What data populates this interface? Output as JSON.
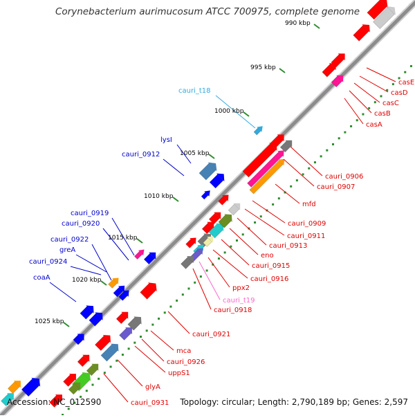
{
  "title": "Corynebacterium aurimucosum ATCC 700975, complete genome",
  "footer": {
    "accession": "Accession: NC_012590",
    "topology": "Topology: circular; Length: 2,790,189 bp; Genes: 2,597"
  },
  "colors": {
    "backbone": "#8c8c8c",
    "tick_dot": "#2e8b2e",
    "label_red": "#e00000",
    "label_blue": "#0000cc",
    "label_cyan": "#33aadd",
    "label_pink": "#ff66cc",
    "cds_red": "#ff0000",
    "cds_blue": "#0000ff",
    "cds_steelblue": "#4682b4",
    "cds_gray": "#777777",
    "cds_lightgray": "#cccccc",
    "cds_magenta": "#ff1493",
    "cds_orange": "#ff9900",
    "cds_cyan": "#22cccc",
    "cds_green": "#44cc22",
    "cds_olive": "#6b8e23",
    "cds_purple": "#6a5acd",
    "cds_lightyellow": "#eeeeaa"
  },
  "ruler_labels": [
    "990 kbp",
    "995 kbp",
    "1000 kbp",
    "1005 kbp",
    "1010 kbp",
    "1015 kbp",
    "1020 kbp",
    "1025 kbp"
  ],
  "right_labels": [
    "casE",
    "casD",
    "casC",
    "casB",
    "casA",
    "cauri_0906",
    "cauri_0907",
    "mfd",
    "cauri_0909",
    "cauri_0911",
    "cauri_0913",
    "eno",
    "cauri_0915",
    "cauri_0916",
    "ppx2",
    "cauri_t19",
    "cauri_0918",
    "cauri_0921",
    "mca",
    "cauri_0926",
    "uppS1",
    "glyA",
    "cauri_0931"
  ],
  "left_labels": [
    "cauri_t18",
    "lysI",
    "cauri_0912",
    "cauri_0919",
    "cauri_0920",
    "cauri_0922",
    "greA",
    "cauri_0924",
    "coaA"
  ]
}
